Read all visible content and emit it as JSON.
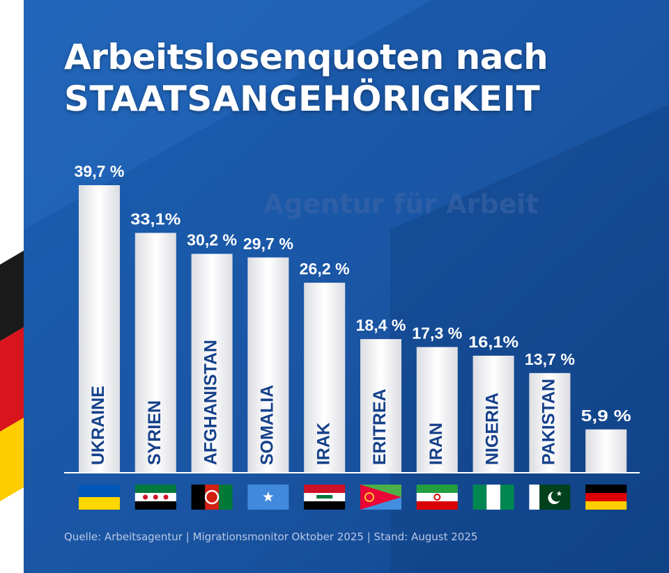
{
  "title_line1": "Arbeitslosenquoten nach",
  "title_line2": "STAATSANGEHÖRIGKEIT",
  "background_text": "Agentur für Arbeit",
  "source": "Quelle: Arbeitsagentur | Migrationsmonitor Oktober 2025 | Stand: August 2025",
  "colors": {
    "background": "#1d5aa8",
    "background_dark": "#134388",
    "bar": "#f0f0f2",
    "text": "#ffffff",
    "bar_label": "#16418a"
  },
  "chart_data": {
    "type": "bar",
    "categories": [
      "UKRAINE",
      "SYRIEN",
      "AFGHANISTAN",
      "SOMALIA",
      "IRAK",
      "ERITREA",
      "IRAN",
      "NIGERIA",
      "PAKISTAN",
      ""
    ],
    "values": [
      39.7,
      33.1,
      30.2,
      29.7,
      26.2,
      18.4,
      17.3,
      16.1,
      13.7,
      5.9
    ],
    "value_labels": [
      "39,7 %",
      "33,1%",
      "30,2 %",
      "29,7 %",
      "26,2 %",
      "18,4 %",
      "17,3 %",
      "16,1%",
      "13,7 %",
      "5,9 %"
    ],
    "flags": [
      "ukraine-flag",
      "syria-flag",
      "afghanistan-flag",
      "somalia-flag",
      "iraq-flag",
      "eritrea-flag",
      "iran-flag",
      "nigeria-flag",
      "pakistan-flag",
      "germany-flag"
    ],
    "unit": "%",
    "ylim": [
      0,
      40
    ],
    "grid": false,
    "legend": "none"
  }
}
